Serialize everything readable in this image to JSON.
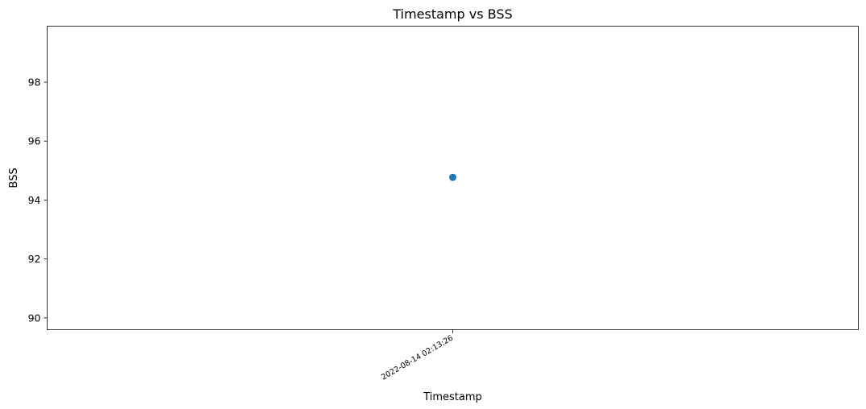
{
  "chart_data": {
    "type": "scatter",
    "title": "Timestamp vs BSS",
    "xlabel": "Timestamp",
    "ylabel": "BSS",
    "x_tick_labels": [
      "2022-08-14 02:13:26"
    ],
    "ylim": [
      89.6,
      99.9
    ],
    "y_ticks": [
      90,
      92,
      94,
      96,
      98
    ],
    "series": [
      {
        "x": [
          "2022-08-14 02:13:26"
        ],
        "values": [
          94.77
        ]
      }
    ],
    "grid": false,
    "colors": {
      "marker": "#1f77b4",
      "axes": "#000000"
    }
  }
}
